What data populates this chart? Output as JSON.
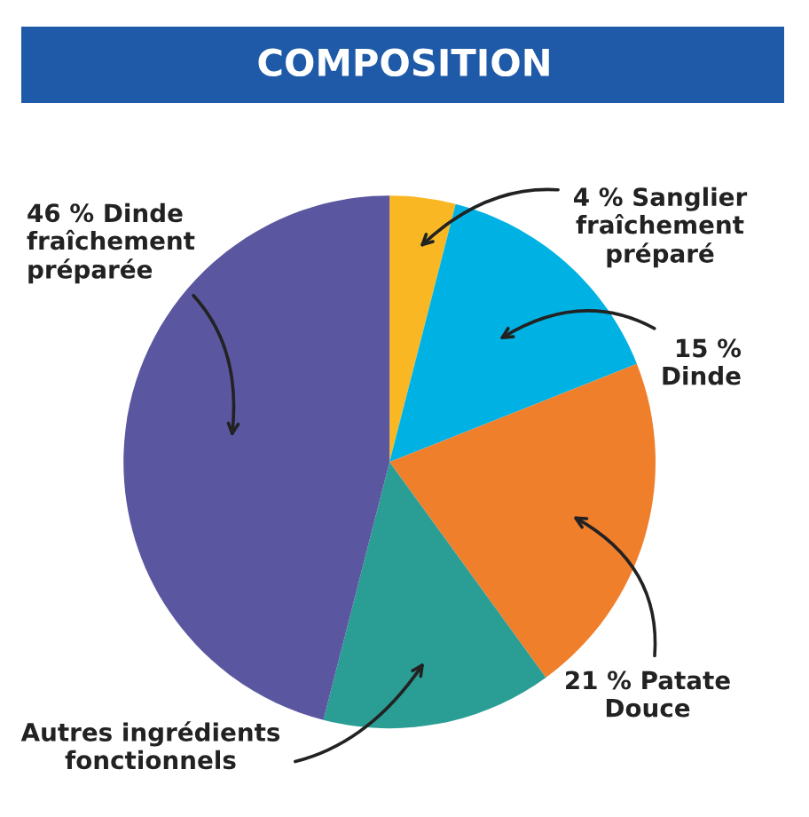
{
  "chart_data": {
    "type": "pie",
    "title": "COMPOSITION",
    "categories": [
      "4 % Sanglier\nfraîchement\npréparé",
      "15 %\nDinde",
      "21 % Patate\nDouce",
      "Autres ingrédients\nfonctionnels",
      "46 % Dinde\nfraîchement\npréparée"
    ],
    "values": [
      4,
      15,
      21,
      14,
      46
    ],
    "colors": [
      "#f9b823",
      "#00b2e3",
      "#f07f2c",
      "#2a9d94",
      "#5a57a0"
    ]
  }
}
